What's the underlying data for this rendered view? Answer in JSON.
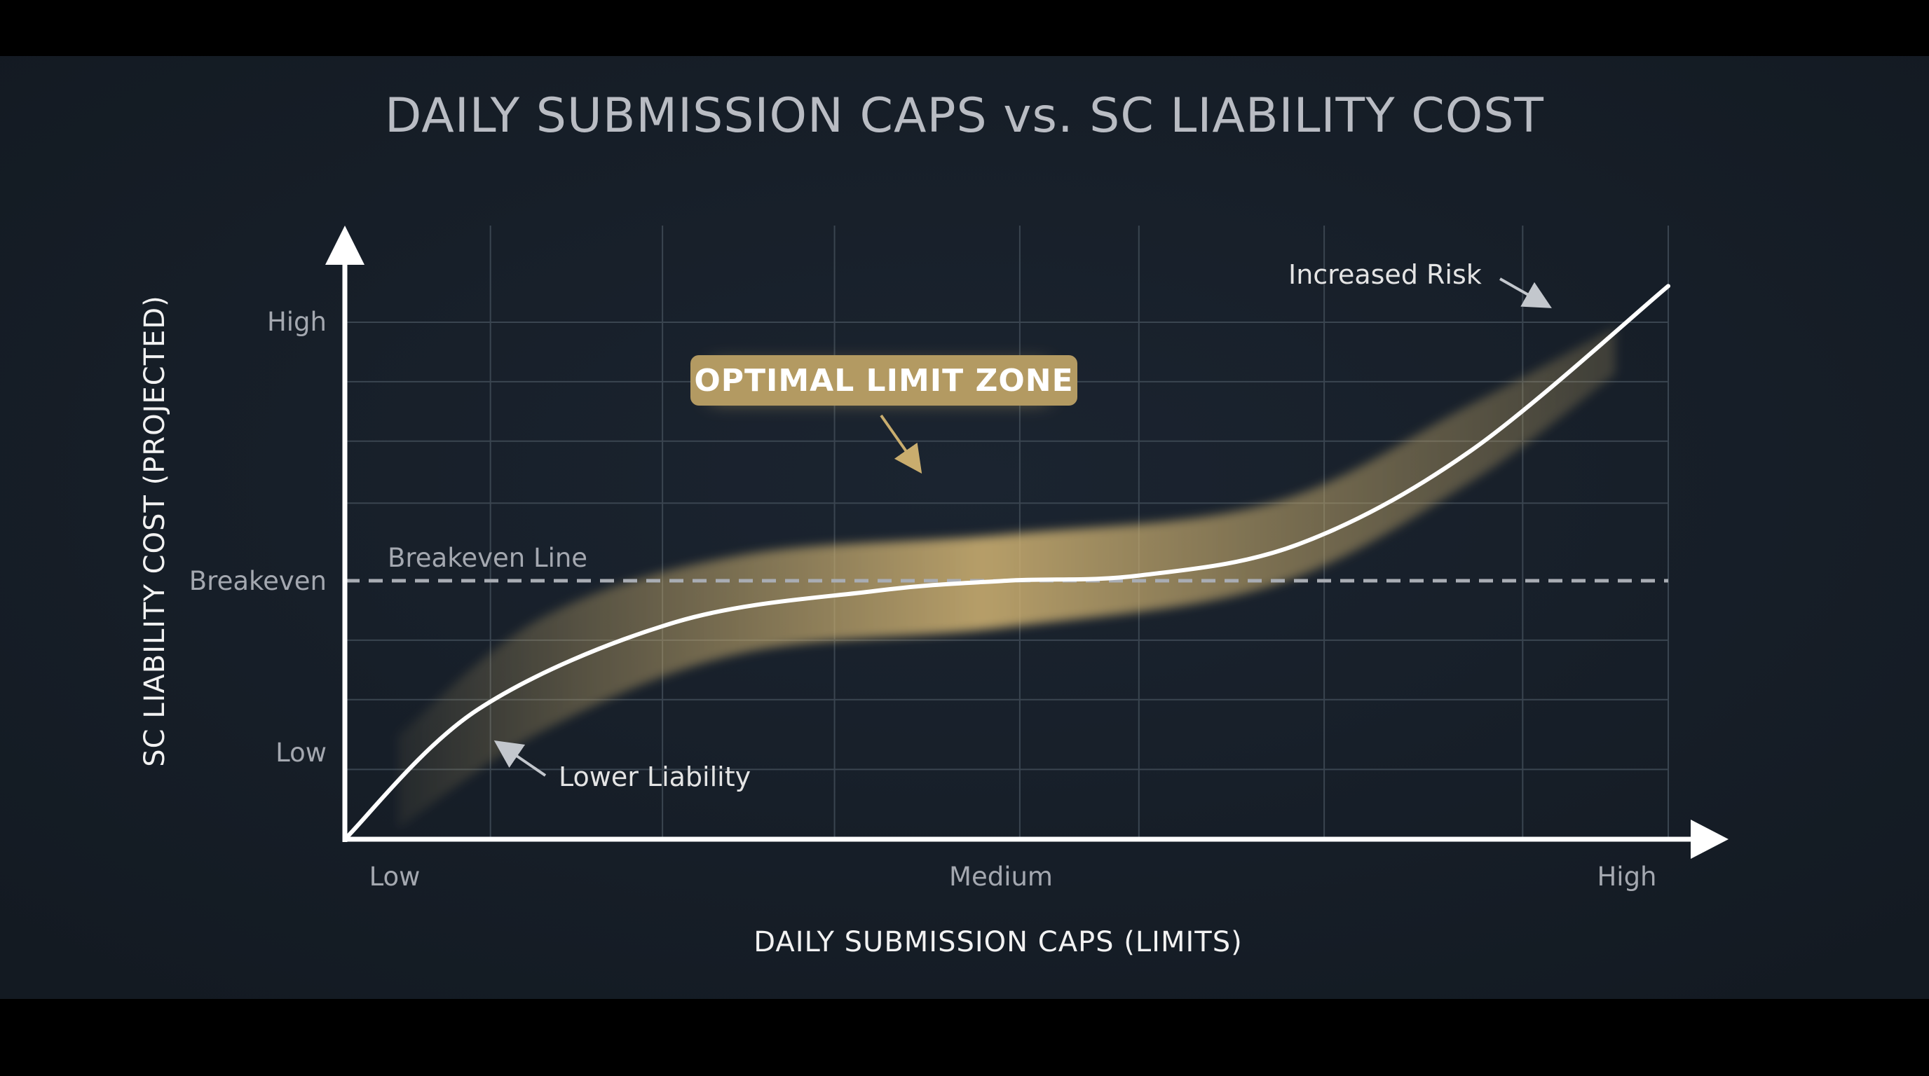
{
  "colors": {
    "background": "#172029",
    "letterbox": "#000000",
    "curve": "#ffffff",
    "band": "#c9ad6e",
    "badge": "#b39a62",
    "grid": "#3a4550",
    "breakeven_line": "#a9adb4"
  },
  "chart_data": {
    "type": "line",
    "title": "DAILY SUBMISSION CAPS vs. SC LIABILITY COST",
    "xlabel": "DAILY SUBMISSION CAPS (LIMITS)",
    "ylabel": "SC LIABILITY COST (PROJECTED)",
    "x_ticks": [
      "Low",
      "Medium",
      "High"
    ],
    "y_ticks": [
      "High",
      "Breakeven",
      "Low"
    ],
    "xlim": [
      0,
      1
    ],
    "ylim": [
      0,
      1
    ],
    "grid": true,
    "breakeven": {
      "label": "Breakeven Line",
      "value": 0.5
    },
    "series": [
      {
        "points": [
          [
            0,
            0
          ],
          [
            0.1,
            0.25
          ],
          [
            0.25,
            0.42
          ],
          [
            0.4,
            0.48
          ],
          [
            0.5,
            0.5
          ],
          [
            0.6,
            0.51
          ],
          [
            0.72,
            0.57
          ],
          [
            0.85,
            0.75
          ],
          [
            1,
            1.07
          ]
        ]
      }
    ],
    "band": {
      "label": "OPTIMAL LIMIT ZONE",
      "points": [
        {
          "x": 0.04,
          "lo": 0.02,
          "hi": 0.2
        },
        {
          "x": 0.15,
          "lo": 0.21,
          "hi": 0.43
        },
        {
          "x": 0.3,
          "lo": 0.36,
          "hi": 0.55
        },
        {
          "x": 0.5,
          "lo": 0.41,
          "hi": 0.59
        },
        {
          "x": 0.7,
          "lo": 0.49,
          "hi": 0.65
        },
        {
          "x": 0.85,
          "lo": 0.69,
          "hi": 0.84
        },
        {
          "x": 0.96,
          "lo": 0.9,
          "hi": 0.99
        }
      ]
    },
    "annotations": [
      {
        "text": "Increased Risk"
      },
      {
        "text": "Lower Liability"
      }
    ]
  }
}
